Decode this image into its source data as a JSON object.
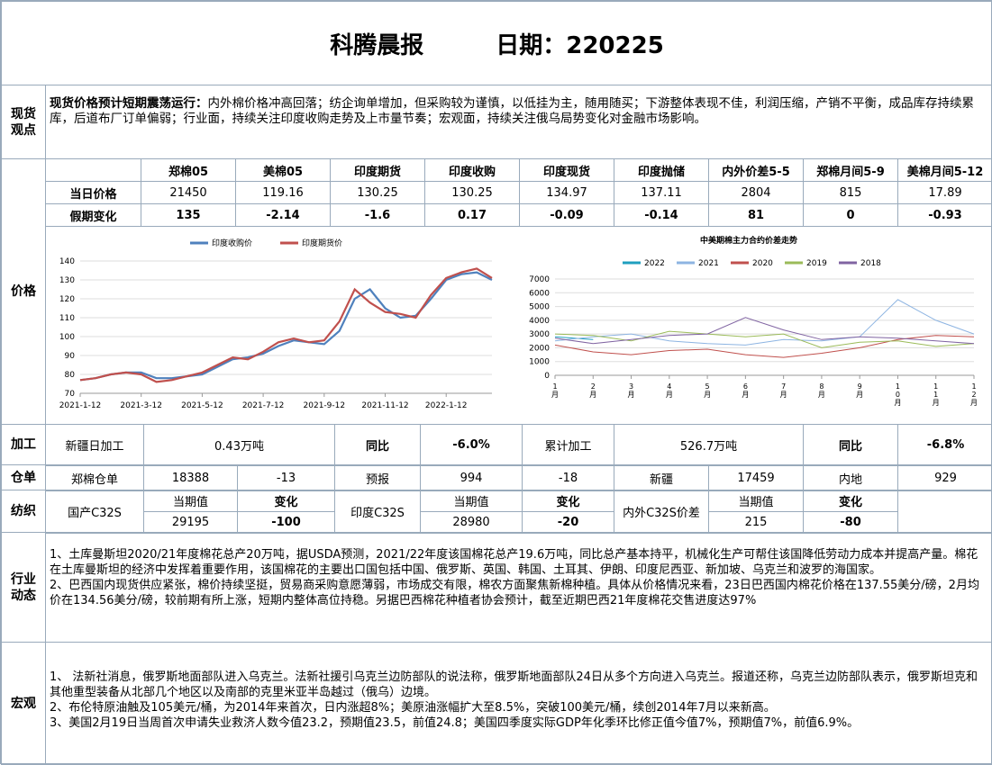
{
  "header": {
    "title": "科腾晨报",
    "date": "日期：220225"
  },
  "spot": {
    "label": "现货观点",
    "lead": "现货价格预计短期震荡运行：",
    "text": "内外棉价格冲高回落；纺企询单增加，但采购较为谨慎，以低挂为主，随用随买；下游整体表现不佳，利润压缩，产销不平衡，成品库存持续累库，后道布厂订单偏弱；行业面，持续关注印度收购走势及上市量节奏；宏观面，持续关注俄乌局势变化对金融市场影响。"
  },
  "price": {
    "label": "价格",
    "columns": [
      "郑棉05",
      "美棉05",
      "印度期货",
      "印度收购",
      "印度现货",
      "印度抛储",
      "内外价差5-5",
      "郑棉月间5-9",
      "美棉月间5-12"
    ],
    "rows": [
      {
        "name": "当日价格",
        "cells": [
          "21450",
          "119.16",
          "130.25",
          "130.25",
          "134.97",
          "137.11",
          "2804",
          "815",
          "17.89"
        ]
      },
      {
        "name": "假期变化",
        "cells": [
          "135",
          "-2.14",
          "-1.6",
          "0.17",
          "-0.09",
          "-0.14",
          "81",
          "0",
          "-0.93"
        ]
      }
    ]
  },
  "chart_data": [
    {
      "type": "line",
      "categories": [
        "2021-1-12",
        null,
        null,
        null,
        "2021-3-12",
        null,
        null,
        null,
        "2021-5-12",
        null,
        null,
        null,
        "2021-7-12",
        null,
        null,
        null,
        "2021-9-12",
        null,
        null,
        null,
        "2021-11-12",
        null,
        null,
        null,
        "2022-1-12",
        null,
        null,
        null
      ],
      "series": [
        {
          "name": "印度收购价",
          "color": "#4f81bd",
          "values": [
            77,
            78,
            80,
            81,
            81,
            78,
            78,
            79,
            80,
            84,
            88,
            89,
            91,
            95,
            98,
            97,
            96,
            103,
            120,
            125,
            115,
            110,
            111,
            120,
            130,
            133,
            134,
            130
          ]
        },
        {
          "name": "印度期货价",
          "color": "#c0504d",
          "values": [
            77,
            78,
            80,
            81,
            80,
            76,
            77,
            79,
            81,
            85,
            89,
            88,
            92,
            97,
            99,
            97,
            98,
            108,
            125,
            118,
            113,
            112,
            110,
            122,
            131,
            134,
            136,
            131
          ]
        }
      ],
      "ylim": [
        70,
        140
      ],
      "yticks": [
        70,
        80,
        90,
        100,
        110,
        120,
        130,
        140
      ],
      "grid": true
    },
    {
      "type": "line",
      "title": "中美期棉主力合约价差走势",
      "categories": [
        "1月",
        "2月",
        "3月",
        "4月",
        "5月",
        "6月",
        "7月",
        "8月",
        "9月",
        "10月",
        "11月",
        "12月"
      ],
      "series": [
        {
          "name": "2022",
          "color": "#1f9fbf",
          "values": [
            2800,
            2600,
            null,
            null,
            null,
            null,
            null,
            null,
            null,
            null,
            null,
            null
          ]
        },
        {
          "name": "2021",
          "color": "#8db4e2",
          "values": [
            2500,
            2800,
            3000,
            2500,
            2300,
            2200,
            2600,
            2500,
            2800,
            5500,
            4000,
            3000
          ]
        },
        {
          "name": "2020",
          "color": "#c0504d",
          "values": [
            2200,
            1700,
            1500,
            1800,
            1900,
            1500,
            1300,
            1600,
            2000,
            2600,
            2900,
            2800
          ]
        },
        {
          "name": "2019",
          "color": "#9bbb59",
          "values": [
            3000,
            2900,
            2500,
            3200,
            3000,
            2800,
            3000,
            2000,
            2400,
            2500,
            2100,
            2300
          ]
        },
        {
          "name": "2018",
          "color": "#8064a2",
          "values": [
            2700,
            2300,
            2600,
            2900,
            3000,
            4200,
            3300,
            2600,
            2800,
            2700,
            2500,
            2300
          ]
        }
      ],
      "ylim": [
        0,
        7000
      ],
      "yticks": [
        0,
        1000,
        2000,
        3000,
        4000,
        5000,
        6000,
        7000
      ],
      "grid": true
    }
  ],
  "processing": {
    "label": "加工",
    "cells": [
      "新疆日加工",
      "0.43万吨",
      "同比",
      "-6.0%",
      "累计加工",
      "526.7万吨",
      "同比",
      "-6.8%"
    ]
  },
  "warehouse": {
    "label": "仓单",
    "cells": [
      "郑棉仓单",
      "18388",
      "-13",
      "预报",
      "994",
      "-18",
      "新疆",
      "17459",
      "内地",
      "929"
    ]
  },
  "textile": {
    "label": "纺织",
    "groups": [
      {
        "name": "国产C32S",
        "current_label": "当期值",
        "current": "29195",
        "change_label": "变化",
        "change": "-100"
      },
      {
        "name": "印度C32S",
        "current_label": "当期值",
        "current": "28980",
        "change_label": "变化",
        "change": "-20"
      },
      {
        "name": "内外C32S价差",
        "current_label": "当期值",
        "current": "215",
        "change_label": "变化",
        "change": "-80"
      }
    ]
  },
  "industry": {
    "label": "行业动态",
    "paragraphs": [
      "1、土库曼斯坦2020/21年度棉花总产20万吨，据USDA预测，2021/22年度该国棉花总产19.6万吨，同比总产基本持平，机械化生产可帮住该国降低劳动力成本并提高产量。棉花在土库曼斯坦的经济中发挥着重要作用，该国棉花的主要出口国包括中国、俄罗斯、英国、韩国、土耳其、伊朗、印度尼西亚、新加坡、乌克兰和波罗的海国家。",
      "2、巴西国内现货供应紧张，棉价持续坚挺，贸易商采购意愿薄弱，市场成交有限，棉农方面聚焦新棉种植。具体从价格情况来看，23日巴西国内棉花价格在137.55美分/磅，2月均价在134.56美分/磅，较前期有所上涨，短期内整体高位持稳。另据巴西棉花种植者协会预计，截至近期巴西21年度棉花交售进度达97%"
    ]
  },
  "macro": {
    "label": "宏观",
    "paragraphs": [
      "1、 法新社消息，俄罗斯地面部队进入乌克兰。法新社援引乌克兰边防部队的说法称，俄罗斯地面部队24日从多个方向进入乌克兰。报道还称，乌克兰边防部队表示，俄罗斯坦克和其他重型装备从北部几个地区以及南部的克里米亚半岛越过（俄乌）边境。",
      "2、布伦特原油触及105美元/桶，为2014年来首次，日内涨超8%；美原油涨幅扩大至8.5%，突破100美元/桶，续创2014年7月以来新高。",
      "3、美国2月19日当周首次申请失业救济人数今值23.2，预期值23.5，前值24.8；美国四季度实际GDP年化季环比修正值今值7%，预期值7%，前值6.9%。"
    ]
  }
}
